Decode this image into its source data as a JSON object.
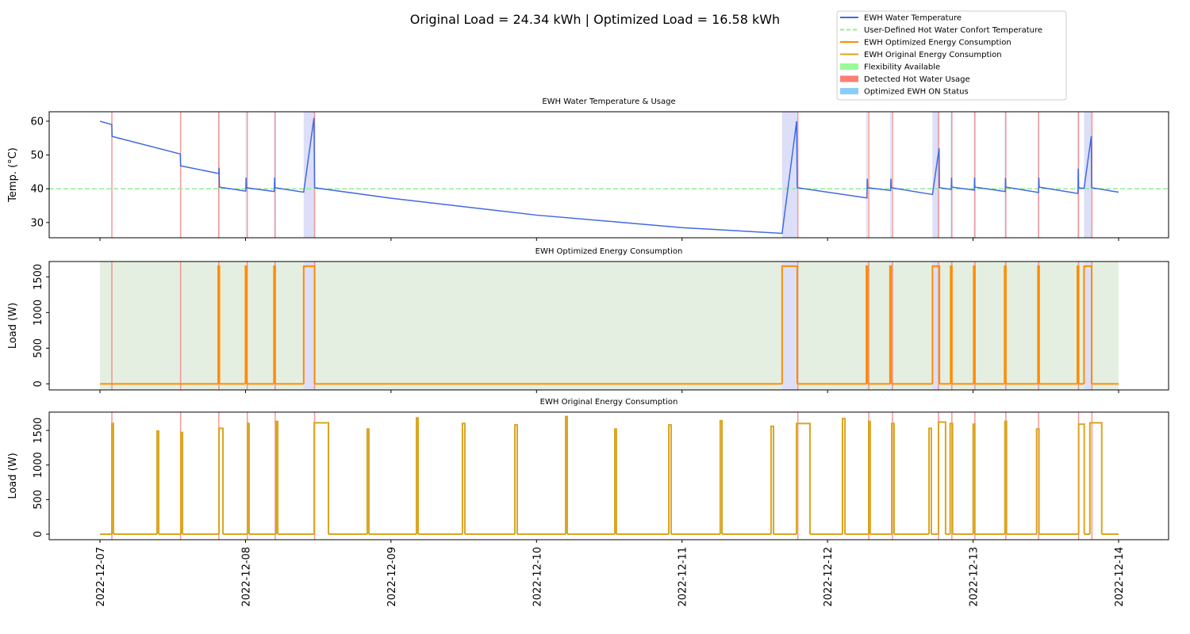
{
  "figure": {
    "title": "Original Load = 24.34 kWh | Optimized Load = 16.58 kWh",
    "xlim": [
      "2022-12-07",
      "2022-12-14"
    ],
    "xticks": [
      "2022-12-07",
      "2022-12-08",
      "2022-12-09",
      "2022-12-10",
      "2022-12-11",
      "2022-12-12",
      "2022-12-13",
      "2022-12-14"
    ],
    "legend": [
      {
        "label": "EWH Water Temperature",
        "color": "#4169e1",
        "style": "line"
      },
      {
        "label": "User-Defined Hot Water Confort Temperature",
        "color": "#90ee90",
        "style": "dash"
      },
      {
        "label": "EWH Optimized Energy Consumption",
        "color": "#ff8c00",
        "style": "line"
      },
      {
        "label": "EWH Original Energy Consumption",
        "color": "#daa520",
        "style": "line"
      },
      {
        "label": "Flexibility Available",
        "color": "#98fb98",
        "style": "patch"
      },
      {
        "label": "Detected Hot Water Usage",
        "color": "#fa8072",
        "style": "patch"
      },
      {
        "label": "Optimized EWH ON Status",
        "color": "#87cefa",
        "style": "patch"
      }
    ],
    "flexibility": {
      "color": "#e4efe1",
      "start": "2022-12-07 00:00",
      "end": "2022-12-14 00:00"
    },
    "on_status": {
      "color": "#dcdff7",
      "spans": [
        {
          "start": "2022-12-07 19:30",
          "end": "2022-12-07 19:42"
        },
        {
          "start": "2022-12-08 00:00",
          "end": "2022-12-08 00:09"
        },
        {
          "start": "2022-12-08 04:42",
          "end": "2022-12-08 04:51"
        },
        {
          "start": "2022-12-08 09:36",
          "end": "2022-12-08 11:24"
        },
        {
          "start": "2022-12-11 16:30",
          "end": "2022-12-11 19:00"
        },
        {
          "start": "2022-12-12 06:24",
          "end": "2022-12-12 06:36"
        },
        {
          "start": "2022-12-12 10:18",
          "end": "2022-12-12 10:30"
        },
        {
          "start": "2022-12-12 17:18",
          "end": "2022-12-12 18:27"
        },
        {
          "start": "2022-12-12 20:18",
          "end": "2022-12-12 20:30"
        },
        {
          "start": "2022-12-13 00:06",
          "end": "2022-12-13 00:18"
        },
        {
          "start": "2022-12-13 05:12",
          "end": "2022-12-13 05:24"
        },
        {
          "start": "2022-12-13 10:42",
          "end": "2022-12-13 10:54"
        },
        {
          "start": "2022-12-13 17:12",
          "end": "2022-12-13 17:24"
        },
        {
          "start": "2022-12-13 18:18",
          "end": "2022-12-13 19:33"
        }
      ]
    },
    "hot_water_usage": {
      "color": "#f08080",
      "times": [
        "2022-12-07 01:58",
        "2022-12-07 13:18",
        "2022-12-07 19:36",
        "2022-12-08 00:18",
        "2022-12-08 04:54",
        "2022-12-08 11:24",
        "2022-12-11 19:06",
        "2022-12-12 06:48",
        "2022-12-12 10:42",
        "2022-12-12 18:18",
        "2022-12-12 20:30",
        "2022-12-13 00:18",
        "2022-12-13 05:24",
        "2022-12-13 10:48",
        "2022-12-13 17:24",
        "2022-12-13 19:36"
      ]
    }
  },
  "chart_data": [
    {
      "type": "line",
      "title": "EWH Water Temperature & Usage",
      "ylabel": "Temp. (°C)",
      "ylim": [
        25.5,
        62.8
      ],
      "yticks": [
        30,
        40,
        50,
        60
      ],
      "shading": [
        "on_status",
        "hot_water_usage"
      ],
      "threshold": {
        "value": 40,
        "color": "#90ee90"
      },
      "series": [
        {
          "color": "#4169e1",
          "x": [
            "2022-12-07 00:00",
            "2022-12-07 01:57",
            "2022-12-07 02:00",
            "2022-12-07 13:15",
            "2022-12-07 13:18",
            "2022-12-07 19:36",
            "2022-12-07 19:39",
            "2022-12-07 19:42",
            "2022-12-08 00:03",
            "2022-12-08 00:06",
            "2022-12-08 00:09",
            "2022-12-08 04:45",
            "2022-12-08 04:48",
            "2022-12-08 04:51",
            "2022-12-08 09:36",
            "2022-12-08 11:18",
            "2022-12-08 11:24",
            "2022-12-09 00:00",
            "2022-12-10 00:00",
            "2022-12-11 00:00",
            "2022-12-11 16:30",
            "2022-12-11 18:54",
            "2022-12-11 19:00",
            "2022-12-12 06:30",
            "2022-12-12 06:33",
            "2022-12-12 06:36",
            "2022-12-12 10:24",
            "2022-12-12 10:27",
            "2022-12-12 10:30",
            "2022-12-12 17:18",
            "2022-12-12 18:24",
            "2022-12-12 18:27",
            "2022-12-12 20:24",
            "2022-12-12 20:27",
            "2022-12-12 20:30",
            "2022-12-13 00:12",
            "2022-12-13 00:15",
            "2022-12-13 00:18",
            "2022-12-13 05:18",
            "2022-12-13 05:21",
            "2022-12-13 05:24",
            "2022-12-13 10:48",
            "2022-12-13 10:51",
            "2022-12-13 10:54",
            "2022-12-13 17:18",
            "2022-12-13 17:21",
            "2022-12-13 17:24",
            "2022-12-13 18:18",
            "2022-12-13 19:30",
            "2022-12-13 19:33",
            "2022-12-14 00:00"
          ],
          "values": [
            60,
            59,
            55.5,
            50.3,
            46.8,
            44.5,
            46.2,
            40.5,
            39.3,
            43.3,
            40.3,
            39.2,
            43.3,
            40.3,
            39,
            61,
            40.3,
            37.2,
            32.2,
            28.5,
            26.8,
            60,
            40.3,
            37.3,
            43,
            40.3,
            39.5,
            43,
            40.3,
            38.3,
            52,
            40.3,
            39.8,
            43.3,
            40.5,
            39.6,
            43.3,
            40.5,
            39.2,
            43.2,
            40.5,
            38.9,
            43.3,
            40.5,
            38.6,
            46,
            40.3,
            40.1,
            55.6,
            40.3,
            39
          ]
        }
      ]
    },
    {
      "type": "step",
      "title": "EWH Optimized Energy Consumption",
      "ylabel": "Load (W)",
      "ylim": [
        -85,
        1715
      ],
      "yticks": [
        0,
        500,
        1000,
        1500
      ],
      "shading": [
        "flexibility",
        "on_status",
        "hot_water_usage"
      ],
      "series": [
        {
          "color": "#ff8c00",
          "off_value": 0,
          "blocks": [
            {
              "start": "2022-12-07 19:30",
              "end": "2022-12-07 19:42",
              "value": 1650
            },
            {
              "start": "2022-12-08 00:00",
              "end": "2022-12-08 00:09",
              "value": 1650
            },
            {
              "start": "2022-12-08 04:42",
              "end": "2022-12-08 04:51",
              "value": 1650
            },
            {
              "start": "2022-12-08 09:36",
              "end": "2022-12-08 11:24",
              "value": 1650
            },
            {
              "start": "2022-12-11 16:30",
              "end": "2022-12-11 19:00",
              "value": 1650
            },
            {
              "start": "2022-12-12 06:24",
              "end": "2022-12-12 06:36",
              "value": 1650
            },
            {
              "start": "2022-12-12 10:18",
              "end": "2022-12-12 10:30",
              "value": 1650
            },
            {
              "start": "2022-12-12 17:18",
              "end": "2022-12-12 18:27",
              "value": 1650
            },
            {
              "start": "2022-12-12 20:18",
              "end": "2022-12-12 20:30",
              "value": 1650
            },
            {
              "start": "2022-12-13 00:06",
              "end": "2022-12-13 00:18",
              "value": 1650
            },
            {
              "start": "2022-12-13 05:12",
              "end": "2022-12-13 05:24",
              "value": 1650
            },
            {
              "start": "2022-12-13 10:42",
              "end": "2022-12-13 10:54",
              "value": 1650
            },
            {
              "start": "2022-12-13 17:12",
              "end": "2022-12-13 17:24",
              "value": 1650
            },
            {
              "start": "2022-12-13 18:18",
              "end": "2022-12-13 19:33",
              "value": 1650
            }
          ]
        }
      ]
    },
    {
      "type": "step",
      "title": "EWH Original Energy Consumption",
      "ylabel": "Load (W)",
      "ylim": [
        -80,
        1765
      ],
      "yticks": [
        0,
        500,
        1000,
        1500
      ],
      "shading": [
        "hot_water_usage"
      ],
      "series": [
        {
          "color": "#daa520",
          "off_value": 0,
          "blocks": [
            {
              "start": "2022-12-07 01:58",
              "end": "2022-12-07 02:13",
              "value": 1600
            },
            {
              "start": "2022-12-07 09:25",
              "end": "2022-12-07 09:41",
              "value": 1490
            },
            {
              "start": "2022-12-07 13:21",
              "end": "2022-12-07 13:37",
              "value": 1470
            },
            {
              "start": "2022-12-07 19:38",
              "end": "2022-12-07 20:17",
              "value": 1530
            },
            {
              "start": "2022-12-08 00:20",
              "end": "2022-12-08 00:36",
              "value": 1600
            },
            {
              "start": "2022-12-08 05:03",
              "end": "2022-12-08 05:19",
              "value": 1630
            },
            {
              "start": "2022-12-08 11:20",
              "end": "2022-12-08 13:41",
              "value": 1610
            },
            {
              "start": "2022-12-08 20:05",
              "end": "2022-12-08 20:21",
              "value": 1520
            },
            {
              "start": "2022-12-09 04:12",
              "end": "2022-12-09 04:28",
              "value": 1680
            },
            {
              "start": "2022-12-09 11:47",
              "end": "2022-12-09 12:11",
              "value": 1600
            },
            {
              "start": "2022-12-09 20:26",
              "end": "2022-12-09 20:49",
              "value": 1580
            },
            {
              "start": "2022-12-10 04:48",
              "end": "2022-12-10 05:04",
              "value": 1700
            },
            {
              "start": "2022-12-10 12:55",
              "end": "2022-12-10 13:10",
              "value": 1520
            },
            {
              "start": "2022-12-10 21:49",
              "end": "2022-12-10 22:12",
              "value": 1580
            },
            {
              "start": "2022-12-11 06:18",
              "end": "2022-12-11 06:35",
              "value": 1640
            },
            {
              "start": "2022-12-11 14:41",
              "end": "2022-12-11 15:05",
              "value": 1560
            },
            {
              "start": "2022-12-11 18:53",
              "end": "2022-12-11 21:06",
              "value": 1600
            },
            {
              "start": "2022-12-12 02:28",
              "end": "2022-12-12 02:52",
              "value": 1670
            },
            {
              "start": "2022-12-12 06:47",
              "end": "2022-12-12 07:02",
              "value": 1630
            },
            {
              "start": "2022-12-12 10:35",
              "end": "2022-12-12 10:58",
              "value": 1600
            },
            {
              "start": "2022-12-12 16:44",
              "end": "2022-12-12 17:07",
              "value": 1530
            },
            {
              "start": "2022-12-12 18:18",
              "end": "2022-12-12 19:28",
              "value": 1620
            },
            {
              "start": "2022-12-12 20:13",
              "end": "2022-12-12 20:37",
              "value": 1600
            },
            {
              "start": "2022-12-13 00:01",
              "end": "2022-12-13 00:17",
              "value": 1590
            },
            {
              "start": "2022-12-13 05:15",
              "end": "2022-12-13 05:31",
              "value": 1630
            },
            {
              "start": "2022-12-13 10:29",
              "end": "2022-12-13 10:52",
              "value": 1520
            },
            {
              "start": "2022-12-13 17:25",
              "end": "2022-12-13 18:20",
              "value": 1590
            },
            {
              "start": "2022-12-13 19:16",
              "end": "2022-12-13 21:13",
              "value": 1610
            }
          ]
        }
      ]
    }
  ]
}
